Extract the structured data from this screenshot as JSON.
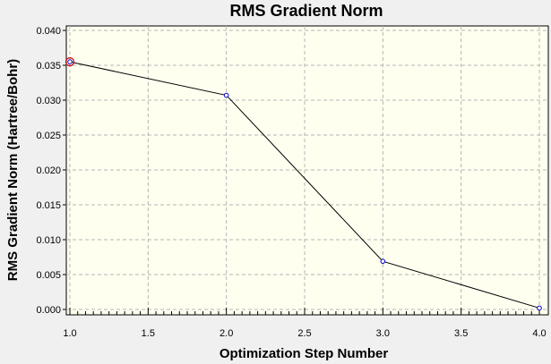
{
  "chart_data": {
    "type": "line",
    "title": "RMS Gradient Norm",
    "xlabel": "Optimization Step Number",
    "ylabel": "RMS Gradient Norm (Hartree/Bohr)",
    "xlim": [
      1.0,
      4.0
    ],
    "ylim": [
      0.0,
      0.04
    ],
    "xticks": [
      "1.0",
      "1.5",
      "2.0",
      "2.5",
      "3.0",
      "3.5",
      "4.0"
    ],
    "yticks": [
      "0.000",
      "0.005",
      "0.010",
      "0.015",
      "0.020",
      "0.025",
      "0.030",
      "0.035",
      "0.040"
    ],
    "grid": true,
    "series": [
      {
        "x": [
          1,
          2,
          3,
          4
        ],
        "y": [
          0.0355,
          0.0307,
          0.0069,
          0.0002
        ]
      }
    ],
    "highlighted_point_index": 0,
    "colors": {
      "plot_background": "#fffff0",
      "page_background": "#f0f0f0",
      "line": "#000000",
      "marker": "#0000cc",
      "highlight_marker": "#cc0000",
      "grid": "#b4b4b4"
    }
  }
}
